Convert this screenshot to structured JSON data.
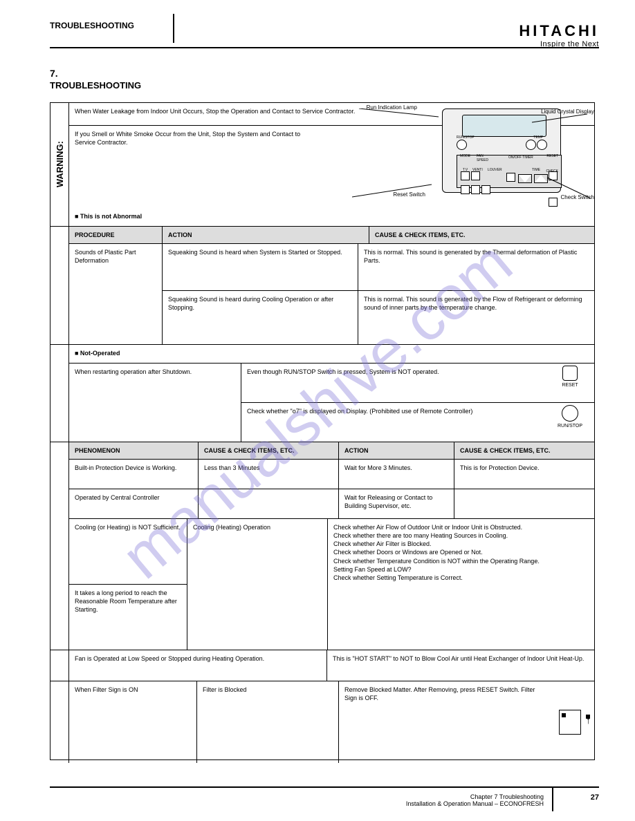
{
  "brand": {
    "name": "HITACHI",
    "tagline": "Inspire the Next"
  },
  "header_title": "TROUBLESHOOTING",
  "section": {
    "number": "7.",
    "title": "TROUBLESHOOTING"
  },
  "warning_label": "WARNING:",
  "proc_label": "PROCEDURE",
  "action_label": "ACTION",
  "phenom_label": "PHENOMENON",
  "cause_label": "CAUSE & CHECK ITEMS, ETC.",
  "blocks": {
    "b1": {
      "text1": "When Water Leakage from Indoor Unit Occurs, Stop the Operation and Contact to Service Contractor.",
      "text2": "If you Smell or White Smoke Occur from the Unit, Stop the System and Contact to Service Contractor."
    },
    "b2": {
      "title": "■ This is not Abnormal",
      "callouts": {
        "run": "Run Indication Lamp",
        "lcd": "Liquid Crystal Display",
        "check": "Check Switch",
        "reset": "Reset Switch"
      }
    },
    "b3": {
      "p": "Sounds of Plastic Part\nDeformation",
      "a1": "Squeaking Sound is heard when System is Started or Stopped.",
      "a2": "Squeaking Sound is heard during Cooling Operation or after Stopping.",
      "e1": "This is normal. This sound is generated by the Thermal deformation of Plastic Parts.",
      "e2": "This is normal. This sound is generated by the Flow of Refrigerant or deforming sound of inner parts by the temperature change."
    },
    "b4": {
      "c1": "When restarting operation after Shutdown.",
      "c2": "Even though RUN/STOP Switch is pressed, System is NOT operated.",
      "c3": "Check whether \"o7\" is displayed on Display. (Prohibited use of Remote Controller)",
      "reset": "RESET",
      "runstop": "RUN/STOP"
    },
    "b5": {
      "title": "■ Not-Operated",
      "rows": [
        [
          "Built-in Protection Device is Working.",
          "Less than 3 Minutes",
          "Wait for More 3 Minutes.",
          "This is for Protection Device."
        ],
        [
          "Operated by Central Controller",
          "",
          "Wait for Releasing or Contact to Building Supervisor, etc.",
          ""
        ]
      ]
    },
    "b6": {
      "p1": "Cooling (or Heating) is NOT Sufficient.",
      "p2": "It takes a long period to reach the Reasonable Room Temperature after Starting.",
      "c": "Cooling (Heating) Operation",
      "cs": [
        "Check whether Air Flow of Outdoor Unit or Indoor Unit is Obstructed.",
        "Check whether there are too many Heating Sources in Cooling.",
        "Check whether Air Filter is Blocked.",
        "Check whether Doors or Windows are Opened or Not.",
        "Check whether Temperature Condition is NOT within the Operating Range.",
        "Setting Fan Speed at LOW?",
        "Check whether Setting Temperature is Correct."
      ],
      "fan": "Fan is Operated at Low Speed or Stopped during Heating Operation.",
      "fan_txt": "This is \"HOT START\" to NOT to Blow Cool Air until Heat Exchanger of Indoor Unit Heat-Up."
    },
    "b7": {
      "p": "When Filter Sign is ON",
      "txt": "Filter is Blocked",
      "act": "Remove Blocked Matter. After Removing, press RESET Switch. Filter Sign is OFF."
    }
  },
  "footer": {
    "text": "Chapter 7 Troubleshooting\nInstallation & Operation Manual – ECONOFRESH",
    "page": "27"
  },
  "watermark": "manualshive.com"
}
